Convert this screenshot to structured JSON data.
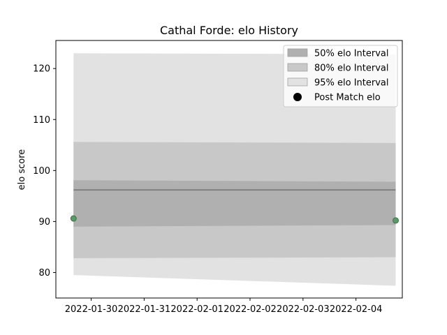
{
  "chart_data": {
    "type": "area",
    "title": "Cathal Forde: elo History",
    "xlabel": "",
    "ylabel": "elo score",
    "x_ticks": [
      "2022-01-30",
      "2022-01-31",
      "2022-02-01",
      "2022-02-02",
      "2022-02-03",
      "2022-02-04"
    ],
    "y_ticks": [
      80,
      90,
      100,
      110,
      120
    ],
    "xlim": [
      "2022-01-29T08:00",
      "2022-02-04T21:00"
    ],
    "ylim": [
      75,
      125.5
    ],
    "grid": false,
    "legend_placement": "top-right",
    "x": [
      "2022-01-29T16:00",
      "2022-02-04T18:00"
    ],
    "mean": [
      96.2,
      96.2
    ],
    "bands": [
      {
        "name": "50% elo Interval",
        "lower": [
          89.0,
          89.3
        ],
        "upper": [
          98.1,
          97.8
        ],
        "color": "#b0b0b0"
      },
      {
        "name": "80% elo Interval",
        "lower": [
          82.8,
          83.0
        ],
        "upper": [
          105.6,
          105.4
        ],
        "color": "#c8c8c8"
      },
      {
        "name": "95% elo Interval",
        "lower": [
          79.5,
          77.4
        ],
        "upper": [
          123.0,
          122.8
        ],
        "color": "#e2e2e2"
      }
    ],
    "points": {
      "name": "Post Match elo",
      "x": [
        "2022-01-29T16:00",
        "2022-02-04T18:00"
      ],
      "y": [
        90.6,
        90.2
      ],
      "color": "#5b9a68"
    },
    "mean_color": "#808080"
  }
}
